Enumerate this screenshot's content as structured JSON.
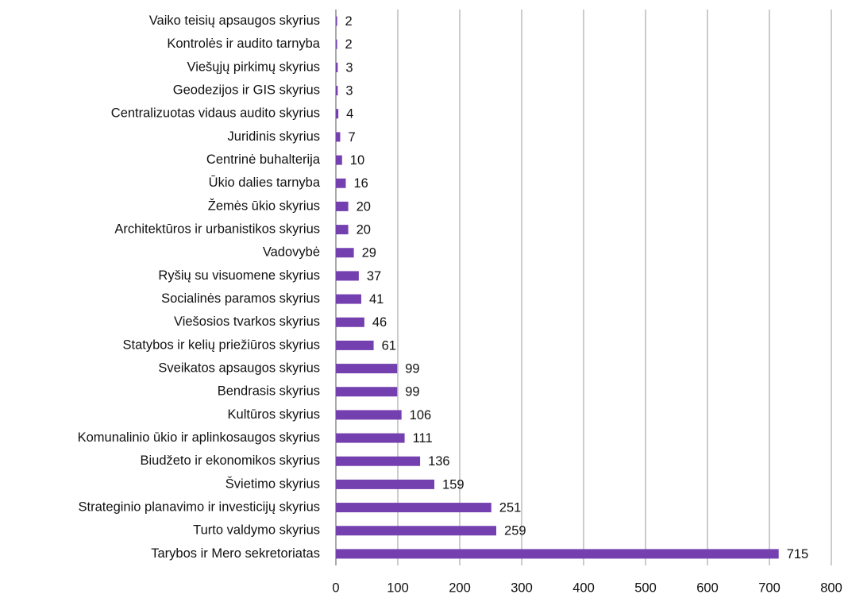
{
  "chart_data": {
    "type": "bar",
    "orientation": "horizontal",
    "categories": [
      "Vaiko teisių apsaugos skyrius",
      "Kontrolės ir audito tarnyba",
      "Viešųjų pirkimų skyrius",
      "Geodezijos ir GIS skyrius",
      "Centralizuotas vidaus audito skyrius",
      "Juridinis skyrius",
      "Centrinė buhalterija",
      "Ūkio dalies tarnyba",
      "Žemės ūkio skyrius",
      "Architektūros ir urbanistikos skyrius",
      "Vadovybė",
      "Ryšių su visuomene skyrius",
      "Socialinės paramos skyrius",
      "Viešosios tvarkos skyrius",
      "Statybos ir kelių priežiūros skyrius",
      "Sveikatos apsaugos skyrius",
      "Bendrasis skyrius",
      "Kultūros skyrius",
      "Komunalinio ūkio ir aplinkosaugos skyrius",
      "Biudžeto ir ekonomikos skyrius",
      "Švietimo skyrius",
      "Strateginio planavimo ir investicijų skyrius",
      "Turto valdymo skyrius",
      "Tarybos ir Mero sekretoriatas"
    ],
    "values": [
      2,
      2,
      3,
      3,
      4,
      7,
      10,
      16,
      20,
      20,
      29,
      37,
      41,
      46,
      61,
      99,
      99,
      106,
      111,
      136,
      159,
      251,
      259,
      715
    ],
    "color": "#7440b0",
    "xlim": [
      0,
      800
    ],
    "xticks": [
      0,
      100,
      200,
      300,
      400,
      500,
      600,
      700,
      800
    ],
    "grid": true
  }
}
